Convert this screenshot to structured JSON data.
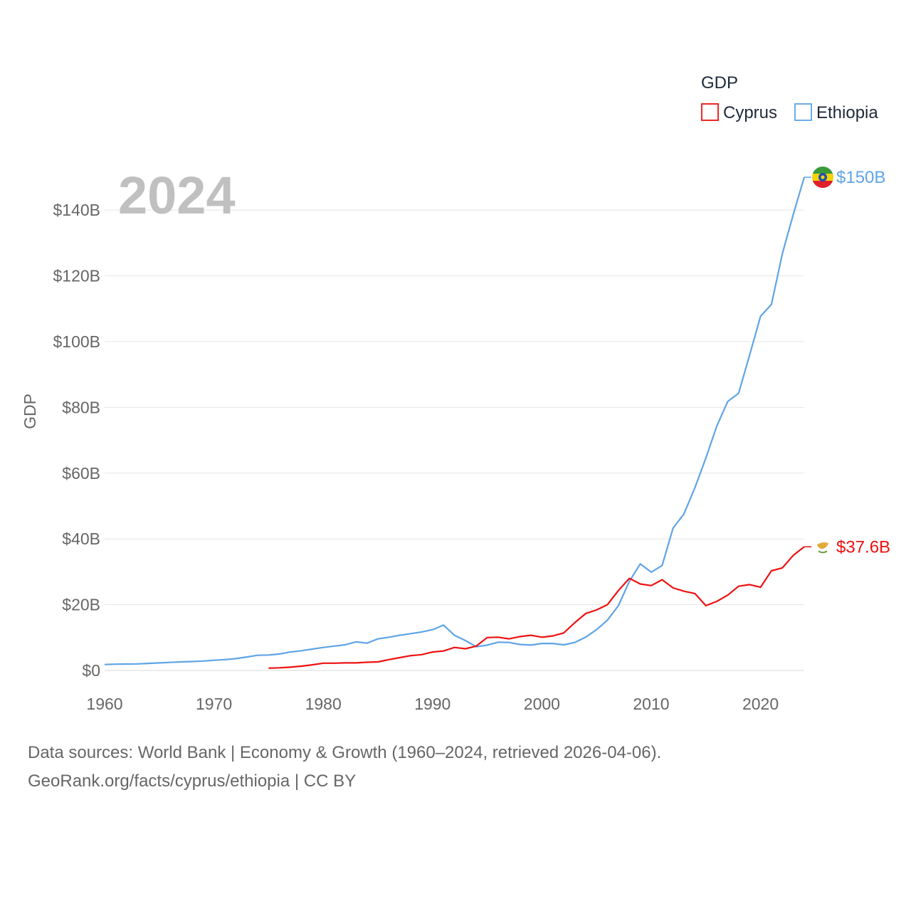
{
  "chart_data": {
    "type": "line",
    "title": "GDP",
    "ylabel": "GDP",
    "xlabel": "",
    "year_label": "2024",
    "xlim": [
      1960,
      2024
    ],
    "ylim": [
      0,
      150
    ],
    "x_ticks": [
      1960,
      1970,
      1980,
      1990,
      2000,
      2010,
      2020
    ],
    "x_tick_labels": [
      "1960",
      "1970",
      "1980",
      "1990",
      "2000",
      "2010",
      "2020"
    ],
    "y_ticks": [
      0,
      20,
      40,
      60,
      80,
      100,
      120,
      140
    ],
    "y_tick_labels": [
      "$0",
      "$20B",
      "$40B",
      "$60B",
      "$80B",
      "$100B",
      "$120B",
      "$140B"
    ],
    "legend": {
      "title": "GDP",
      "position": "top-right",
      "entries": [
        {
          "name": "Cyprus",
          "color": "#ee1111"
        },
        {
          "name": "Ethiopia",
          "color": "#5fa4e6"
        }
      ]
    },
    "series": [
      {
        "name": "Cyprus",
        "color": "#ee1111",
        "end_label": "$37.6B",
        "flag_icon": "cyprus-flag-icon",
        "x": [
          1975,
          1976,
          1977,
          1978,
          1979,
          1980,
          1981,
          1982,
          1983,
          1984,
          1985,
          1986,
          1987,
          1988,
          1989,
          1990,
          1991,
          1992,
          1993,
          1994,
          1995,
          1996,
          1997,
          1998,
          1999,
          2000,
          2001,
          2002,
          2003,
          2004,
          2005,
          2006,
          2007,
          2008,
          2009,
          2010,
          2011,
          2012,
          2013,
          2014,
          2015,
          2016,
          2017,
          2018,
          2019,
          2020,
          2021,
          2022,
          2023,
          2024
        ],
        "values": [
          0.7,
          0.8,
          1.0,
          1.3,
          1.7,
          2.2,
          2.2,
          2.3,
          2.3,
          2.5,
          2.6,
          3.3,
          3.9,
          4.5,
          4.8,
          5.6,
          5.9,
          7.0,
          6.6,
          7.4,
          10.0,
          10.1,
          9.6,
          10.3,
          10.7,
          10.1,
          10.5,
          11.4,
          14.5,
          17.3,
          18.4,
          20.0,
          24.3,
          28.0,
          26.3,
          25.8,
          27.6,
          25.1,
          24.1,
          23.4,
          19.7,
          21.0,
          22.9,
          25.6,
          26.1,
          25.3,
          30.3,
          31.2,
          35.0,
          37.6
        ]
      },
      {
        "name": "Ethiopia",
        "color": "#5fa4e6",
        "end_label": "$150B",
        "flag_icon": "ethiopia-flag-icon",
        "x": [
          1960,
          1961,
          1962,
          1963,
          1964,
          1965,
          1966,
          1967,
          1968,
          1969,
          1970,
          1971,
          1972,
          1973,
          1974,
          1975,
          1976,
          1977,
          1978,
          1979,
          1980,
          1981,
          1982,
          1983,
          1984,
          1985,
          1986,
          1987,
          1988,
          1989,
          1990,
          1991,
          1992,
          1993,
          1994,
          1995,
          1996,
          1997,
          1998,
          1999,
          2000,
          2001,
          2002,
          2003,
          2004,
          2005,
          2006,
          2007,
          2008,
          2009,
          2010,
          2011,
          2012,
          2013,
          2014,
          2015,
          2016,
          2017,
          2018,
          2019,
          2020,
          2021,
          2022,
          2023,
          2024
        ],
        "values": [
          1.8,
          1.9,
          1.95,
          2.0,
          2.15,
          2.3,
          2.45,
          2.6,
          2.7,
          2.85,
          3.1,
          3.3,
          3.6,
          4.1,
          4.6,
          4.7,
          5.0,
          5.6,
          6.0,
          6.5,
          7.0,
          7.4,
          7.8,
          8.7,
          8.3,
          9.6,
          10.1,
          10.7,
          11.2,
          11.7,
          12.4,
          13.8,
          10.7,
          9.1,
          7.2,
          7.7,
          8.6,
          8.5,
          7.9,
          7.7,
          8.2,
          8.2,
          7.8,
          8.5,
          10.1,
          12.4,
          15.3,
          19.7,
          27.1,
          32.4,
          29.9,
          31.9,
          43.3,
          47.6,
          55.6,
          64.6,
          74.3,
          81.8,
          84.3,
          95.9,
          107.7,
          111.3,
          126.8,
          138.7,
          150.0
        ]
      }
    ]
  },
  "footer": {
    "sources": "Data sources: World Bank | Economy & Growth (1960–2024, retrieved 2026-04-06).",
    "attribution": "GeoRank.org/facts/cyprus/ethiopia | CC BY"
  }
}
